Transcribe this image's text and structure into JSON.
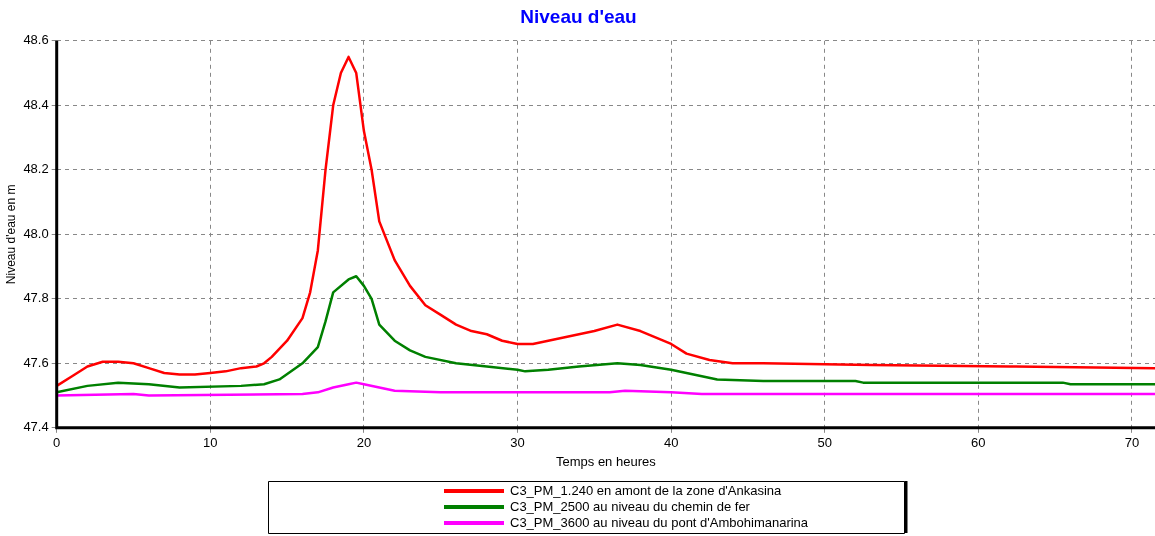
{
  "chart_data": {
    "type": "line",
    "title": "Niveau d'eau",
    "xlabel": "Temps en heures",
    "ylabel": "Niveau d'eau en m",
    "xlim": [
      0,
      71.5
    ],
    "xticks": [
      0,
      10,
      20,
      30,
      40,
      50,
      60,
      70
    ],
    "ylim": [
      47.4,
      48.6
    ],
    "yticks": [
      {
        "value": 47.4,
        "label": "47.4"
      },
      {
        "value": 47.6,
        "label": "47.6"
      },
      {
        "value": 47.8,
        "label": "47.8"
      },
      {
        "value": 48.0,
        "label": "48.0"
      },
      {
        "value": 48.2,
        "label": "48.2"
      },
      {
        "value": 48.4,
        "label": "48.4"
      },
      {
        "value": 48.6,
        "label": "48.6"
      }
    ],
    "grid": true,
    "legend": "bottom",
    "marker": "none",
    "line_style": "solid",
    "series": [
      {
        "name": "C3_PM_1.240 en amont de la zone d'Ankasina",
        "color": "#ff0000",
        "x": [
          0,
          1,
          2,
          3,
          4,
          5,
          6,
          7,
          8,
          9,
          10,
          11,
          12,
          13,
          13.5,
          14,
          15,
          16,
          16.5,
          17,
          17.5,
          18,
          18.5,
          19,
          19.5,
          20,
          20.5,
          21,
          22,
          23,
          24,
          25,
          26,
          27,
          28,
          29,
          30,
          31,
          32,
          33,
          34,
          35,
          36.5,
          38,
          40,
          41,
          42.5,
          44,
          46,
          53,
          62,
          71.5
        ],
        "values": [
          47.53,
          47.56,
          47.59,
          47.605,
          47.605,
          47.6,
          47.585,
          47.57,
          47.565,
          47.565,
          47.57,
          47.575,
          47.585,
          47.59,
          47.6,
          47.62,
          47.67,
          47.74,
          47.82,
          47.95,
          48.2,
          48.4,
          48.5,
          48.55,
          48.5,
          48.32,
          48.2,
          48.04,
          47.92,
          47.84,
          47.78,
          47.75,
          47.72,
          47.7,
          47.69,
          47.67,
          47.66,
          47.66,
          47.67,
          47.68,
          47.69,
          47.7,
          47.72,
          47.7,
          47.66,
          47.63,
          47.61,
          47.6,
          47.6,
          47.595,
          47.59,
          47.585
        ]
      },
      {
        "name": "C3_PM_2500 au niveau du chemin de fer",
        "color": "#008000",
        "x": [
          0,
          2,
          4,
          6,
          8,
          12,
          13.5,
          14.5,
          16,
          17,
          17.5,
          18,
          19,
          19.5,
          20,
          20.5,
          21,
          22,
          23,
          24,
          26,
          28,
          30,
          30.5,
          32,
          34,
          36.5,
          38,
          40,
          42,
          43,
          46,
          52,
          52.5,
          65.5,
          66,
          71.5
        ],
        "values": [
          47.51,
          47.53,
          47.54,
          47.535,
          47.525,
          47.53,
          47.535,
          47.55,
          47.6,
          47.65,
          47.73,
          47.82,
          47.86,
          47.87,
          47.84,
          47.8,
          47.72,
          47.67,
          47.64,
          47.62,
          47.6,
          47.59,
          47.58,
          47.575,
          47.58,
          47.59,
          47.6,
          47.595,
          47.58,
          47.56,
          47.55,
          47.545,
          47.545,
          47.54,
          47.54,
          47.535,
          47.535
        ]
      },
      {
        "name": "C3_PM_3600 au niveau du pont d'Ambohimanarina",
        "color": "#ff00ff",
        "x": [
          0,
          5,
          6,
          16,
          17,
          18,
          19,
          19.5,
          20,
          21,
          22,
          25,
          36,
          37,
          40,
          42,
          71.5
        ],
        "values": [
          47.5,
          47.505,
          47.5,
          47.505,
          47.51,
          47.525,
          47.535,
          47.54,
          47.535,
          47.525,
          47.515,
          47.51,
          47.51,
          47.515,
          47.51,
          47.505,
          47.505
        ]
      }
    ]
  }
}
